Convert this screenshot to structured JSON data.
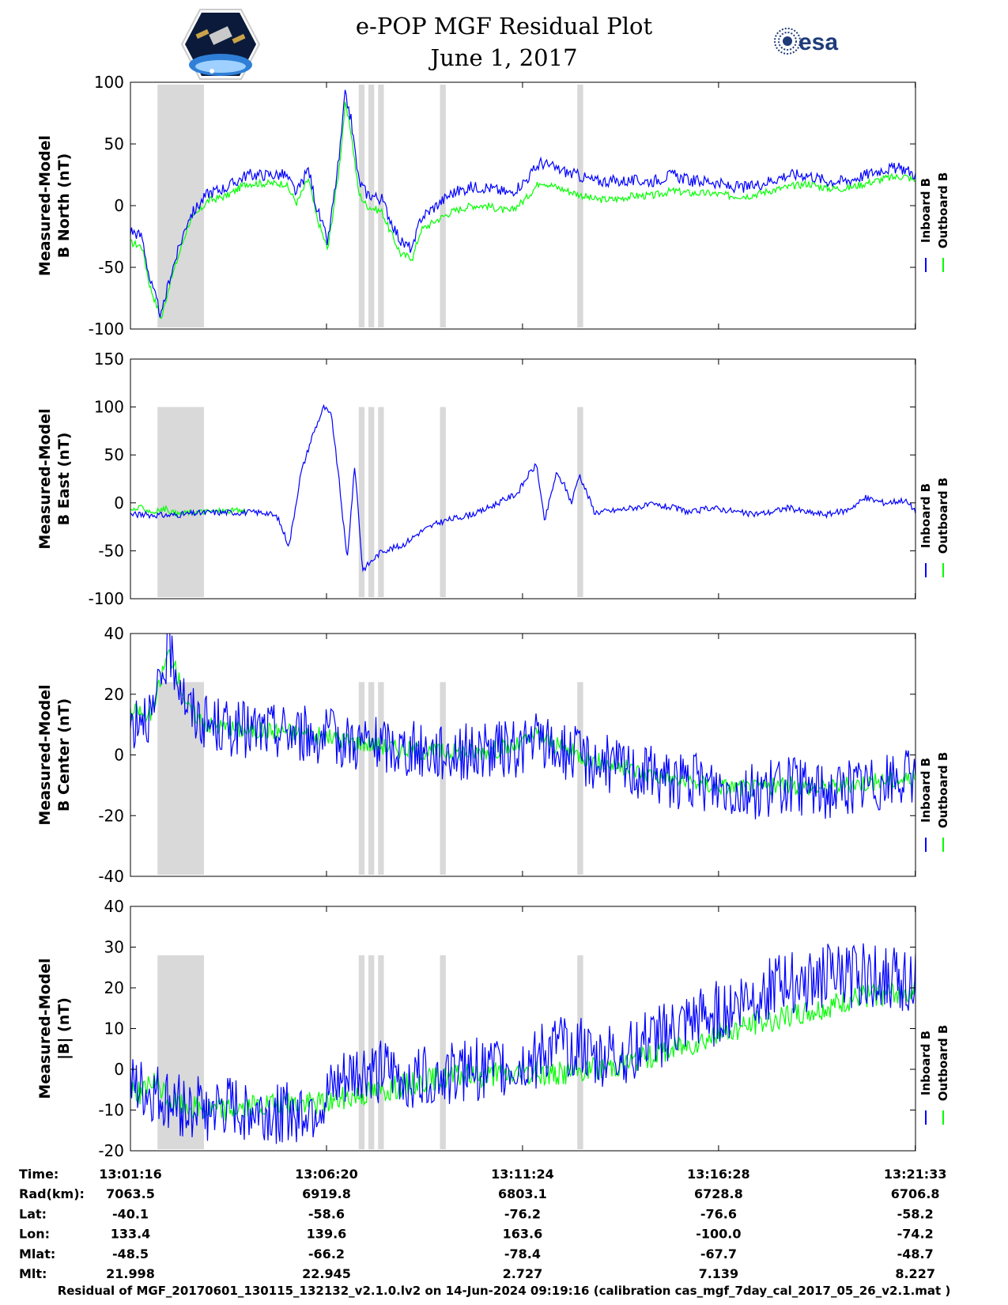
{
  "header": {
    "title": "e-POP MGF Residual Plot",
    "date": "June 1, 2017",
    "mission_logo": "cassiope-epop-mission-logo",
    "agency_logo_text": "esa"
  },
  "colors": {
    "inboard": "#0000ff",
    "outboard": "#00ff00",
    "shading": "#d9d9d9",
    "axis": "#000000"
  },
  "legend": {
    "inboard": "Inboard B",
    "outboard": "Outboard B"
  },
  "chart_data": [
    {
      "type": "line",
      "ylabel": [
        "Measured-Model",
        "B North (nT)"
      ],
      "ylim": [
        -100,
        100
      ],
      "yticks": [
        -100,
        -50,
        0,
        50,
        100
      ],
      "series": [
        {
          "name": "Inboard B",
          "color": "#0000ff",
          "x": [
            0,
            0.3,
            0.5,
            0.8,
            1.0,
            1.5,
            2.0,
            2.5,
            3.0,
            3.5,
            4.0,
            4.3,
            4.6,
            4.8,
            5.1,
            5.4,
            5.55,
            5.7,
            5.9,
            6.1,
            6.5,
            6.7,
            7.0,
            7.3,
            7.5,
            7.9,
            8.3,
            8.8,
            9.2,
            9.8,
            10.2,
            10.6,
            11.0,
            11.5,
            12.0,
            12.5,
            13.0,
            13.5,
            14.0,
            14.5,
            15.0,
            15.5,
            16.0,
            16.5,
            17.0,
            17.5,
            18.0,
            18.5,
            19.0,
            19.5,
            20.0,
            20.29
          ],
          "y": [
            -20,
            -25,
            -60,
            -90,
            -60,
            -10,
            10,
            15,
            25,
            25,
            25,
            10,
            30,
            0,
            -30,
            40,
            90,
            70,
            20,
            10,
            5,
            -10,
            -30,
            -35,
            -10,
            0,
            10,
            15,
            15,
            10,
            20,
            35,
            30,
            25,
            20,
            20,
            20,
            20,
            25,
            20,
            20,
            15,
            15,
            20,
            25,
            25,
            20,
            20,
            25,
            30,
            30,
            25
          ]
        },
        {
          "name": "Outboard B",
          "color": "#00ff00",
          "x": [
            0,
            0.3,
            0.5,
            0.8,
            1.0,
            1.5,
            2.0,
            2.5,
            3.0,
            3.5,
            4.0,
            4.3,
            4.6,
            4.8,
            5.1,
            5.4,
            5.55,
            5.7,
            5.9,
            6.1,
            6.5,
            6.7,
            7.0,
            7.3,
            7.5,
            7.9,
            8.3,
            8.8,
            9.2,
            9.8,
            10.2,
            10.6,
            11.0,
            11.5,
            12.0,
            12.5,
            13.0,
            13.5,
            14.0,
            14.5,
            15.0,
            15.5,
            16.0,
            16.5,
            17.0,
            17.5,
            18.0,
            18.5,
            19.0,
            19.5,
            20.0,
            20.29
          ],
          "y": [
            -30,
            -33,
            -65,
            -92,
            -65,
            -15,
            4,
            8,
            18,
            18,
            18,
            2,
            22,
            -8,
            -36,
            32,
            82,
            60,
            10,
            0,
            -5,
            -20,
            -40,
            -42,
            -20,
            -12,
            -5,
            0,
            0,
            -5,
            5,
            20,
            15,
            10,
            5,
            5,
            8,
            8,
            12,
            10,
            10,
            8,
            8,
            12,
            15,
            18,
            14,
            14,
            18,
            22,
            24,
            20
          ]
        }
      ]
    },
    {
      "type": "line",
      "ylabel": [
        "Measured-Model",
        "B East (nT)"
      ],
      "ylim": [
        -100,
        150
      ],
      "yticks": [
        -100,
        -50,
        0,
        50,
        100,
        150
      ],
      "series": [
        {
          "name": "Inboard B",
          "color": "#0000ff",
          "x": [
            0,
            1.0,
            2.0,
            3.0,
            3.5,
            3.8,
            4.1,
            4.4,
            4.7,
            5.0,
            5.2,
            5.4,
            5.6,
            5.8,
            6.0,
            6.5,
            7.0,
            7.5,
            8.0,
            8.5,
            9.0,
            9.5,
            10.0,
            10.3,
            10.5,
            10.7,
            11.0,
            11.2,
            11.4,
            11.6,
            11.8,
            12.0,
            12.5,
            13.0,
            13.5,
            14.0,
            14.5,
            15.0,
            15.5,
            16.0,
            16.5,
            17.0,
            17.5,
            18.0,
            18.5,
            19.0,
            19.5,
            20.0,
            20.29
          ],
          "y": [
            -12,
            -13,
            -10,
            -10,
            -10,
            -15,
            -45,
            30,
            70,
            100,
            90,
            20,
            -60,
            40,
            -70,
            -50,
            -45,
            -30,
            -20,
            -15,
            -10,
            0,
            10,
            30,
            40,
            -20,
            30,
            20,
            0,
            30,
            10,
            -10,
            -8,
            -5,
            -2,
            -5,
            -10,
            -5,
            -8,
            -12,
            -10,
            -5,
            -10,
            -12,
            -8,
            5,
            0,
            3,
            -8
          ]
        },
        {
          "name": "Outboard B",
          "color": "#00ff00",
          "x": [
            0,
            0.3,
            0.6,
            0.9,
            1.2,
            1.5,
            2.0,
            3.0
          ],
          "y": [
            -8,
            -5,
            -10,
            -6,
            -12,
            -10,
            -9,
            -8
          ]
        }
      ]
    },
    {
      "type": "line",
      "ylabel": [
        "Measured-Model",
        "B Center (nT)"
      ],
      "ylim": [
        -40,
        40
      ],
      "yticks": [
        -40,
        -20,
        0,
        20,
        40
      ],
      "series": [
        {
          "name": "Inboard B",
          "color": "#0000ff",
          "x": [
            0,
            0.3,
            0.6,
            0.8,
            1.0,
            1.2,
            1.5,
            2.0,
            3.0,
            4.0,
            5.0,
            6.0,
            7.0,
            8.0,
            9.0,
            10.0,
            10.5,
            11.0,
            12.0,
            13.0,
            14.0,
            15.0,
            16.0,
            17.0,
            18.0,
            19.0,
            20.0,
            20.29
          ],
          "y": [
            10,
            15,
            12,
            25,
            35,
            28,
            15,
            10,
            8,
            8,
            6,
            4,
            2,
            1,
            1,
            2,
            5,
            2,
            -2,
            -5,
            -8,
            -10,
            -12,
            -10,
            -12,
            -10,
            -8,
            -8
          ]
        },
        {
          "name": "Outboard B",
          "color": "#00ff00",
          "x": [
            0,
            0.2,
            0.4,
            0.6,
            0.8,
            1.0,
            1.2,
            1.5,
            2.0,
            3.0,
            4.0,
            5.0,
            6.0,
            7.0,
            8.0,
            9.0,
            10.0,
            10.5,
            11.0,
            12.0,
            13.0,
            14.0,
            15.0,
            16.0,
            17.0,
            18.0,
            19.0,
            20.0,
            20.29
          ],
          "y": [
            13,
            15,
            12,
            15,
            26,
            34,
            27,
            15,
            10,
            8,
            8,
            6,
            4,
            2,
            1,
            1,
            3,
            7,
            3,
            -2,
            -5,
            -8,
            -10,
            -11,
            -10,
            -11,
            -9,
            -8,
            -8
          ]
        }
      ]
    },
    {
      "type": "line",
      "ylabel": [
        "Measured-Model",
        "|B| (nT)"
      ],
      "ylim": [
        -20,
        40
      ],
      "yticks": [
        -20,
        -10,
        0,
        10,
        20,
        30,
        40
      ],
      "series": [
        {
          "name": "Inboard B",
          "color": "#0000ff",
          "x": [
            0,
            0.5,
            1.0,
            2.0,
            3.0,
            4.0,
            5.0,
            5.5,
            6.0,
            7.0,
            8.0,
            9.0,
            10.0,
            10.5,
            11.0,
            11.5,
            12.0,
            13.0,
            14.0,
            15.0,
            16.0,
            17.0,
            18.0,
            19.0,
            20.0,
            20.29
          ],
          "y": [
            -5,
            -6,
            -8,
            -10,
            -10,
            -11,
            -8,
            -3,
            0,
            -2,
            -1,
            0,
            1,
            3,
            5,
            6,
            2,
            5,
            9,
            13,
            18,
            21,
            23,
            23,
            22,
            23
          ]
        },
        {
          "name": "Outboard B",
          "color": "#00ff00",
          "x": [
            0,
            0.3,
            0.6,
            0.9,
            1.0,
            2.0,
            5.0,
            8.0,
            10.0,
            11.0,
            12.0,
            13.0,
            14.0,
            15.0,
            16.0,
            17.0,
            18.0,
            19.0,
            20.0,
            20.29
          ],
          "y": [
            -4,
            -6,
            -3,
            -6,
            -8,
            -10,
            -8,
            -2,
            -1,
            -1,
            0,
            2,
            5,
            8,
            11,
            13,
            15,
            18,
            19,
            20
          ]
        }
      ]
    }
  ],
  "shading_intervals": [
    [
      0.7,
      1.9
    ],
    [
      5.9,
      6.05
    ],
    [
      6.15,
      6.3
    ],
    [
      6.4,
      6.55
    ],
    [
      8.0,
      8.15
    ],
    [
      11.55,
      11.7
    ]
  ],
  "x_axis": {
    "xlim": [
      0,
      20.29
    ],
    "ticks": [
      0,
      5.067,
      10.133,
      15.2,
      20.283
    ],
    "rows": [
      {
        "label": "Time:",
        "values": [
          "13:01:16",
          "13:06:20",
          "13:11:24",
          "13:16:28",
          "13:21:33"
        ]
      },
      {
        "label": "Rad(km):",
        "values": [
          "7063.5",
          "6919.8",
          "6803.1",
          "6728.8",
          "6706.8"
        ]
      },
      {
        "label": "Lat:",
        "values": [
          "-40.1",
          "-58.6",
          "-76.2",
          "-76.6",
          "-58.2"
        ]
      },
      {
        "label": "Lon:",
        "values": [
          "133.4",
          "139.6",
          "163.6",
          "-100.0",
          "-74.2"
        ]
      },
      {
        "label": "Mlat:",
        "values": [
          "-48.5",
          "-66.2",
          "-78.4",
          "-67.7",
          "-48.7"
        ]
      },
      {
        "label": "Mlt:",
        "values": [
          "21.998",
          "22.945",
          "2.727",
          "7.139",
          "8.227"
        ]
      }
    ]
  },
  "footer": "Residual of MGF_20170601_130115_132132_v2.1.0.lv2 on 14-Jun-2024 09:19:16 (calibration cas_mgf_7day_cal_2017_05_26_v2.1.mat )"
}
